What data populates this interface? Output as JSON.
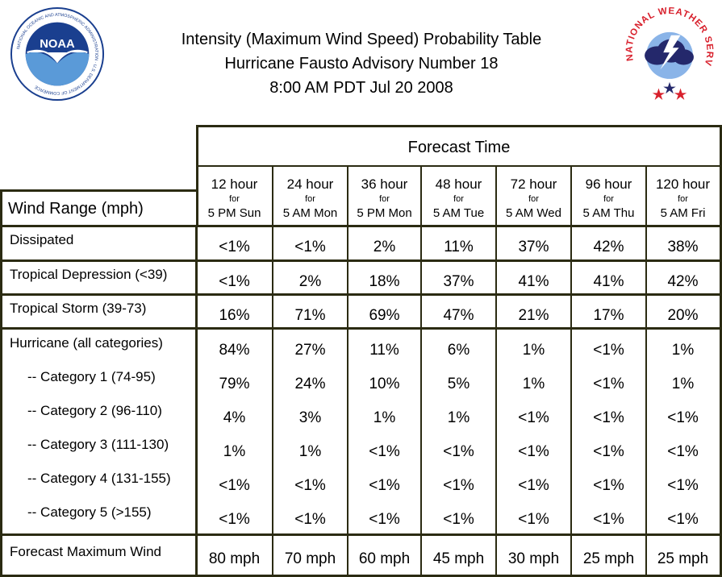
{
  "title": {
    "line1": "Intensity (Maximum Wind Speed) Probability Table",
    "line2": "Hurricane Fausto Advisory Number 18",
    "line3": "8:00 AM PDT Jul 20 2008"
  },
  "logos": {
    "noaa": {
      "text": "NOAA",
      "ring_text": "NATIONAL OCEANIC AND ATMOSPHERIC ADMINISTRATION · U.S. DEPARTMENT OF COMMERCE"
    },
    "nws": {
      "ring_text": "NATIONAL WEATHER SERVICE"
    }
  },
  "colors": {
    "border": "#2b2b12",
    "noaa_blue": "#1a3f8f",
    "nws_red": "#d8202c",
    "nws_cloud": "#24286b"
  },
  "table": {
    "forecast_time_label": "Forecast Time",
    "wind_range_label": "Wind Range (mph)",
    "columns": [
      {
        "hours": "12 hour",
        "for": "for",
        "when": "5 PM Sun"
      },
      {
        "hours": "24 hour",
        "for": "for",
        "when": "5 AM Mon"
      },
      {
        "hours": "36 hour",
        "for": "for",
        "when": "5 PM Mon"
      },
      {
        "hours": "48 hour",
        "for": "for",
        "when": "5 AM Tue"
      },
      {
        "hours": "72 hour",
        "for": "for",
        "when": "5 AM Wed"
      },
      {
        "hours": "96 hour",
        "for": "for",
        "when": "5 AM Thu"
      },
      {
        "hours": "120 hour",
        "for": "for",
        "when": "5 AM Fri"
      }
    ],
    "rows": [
      {
        "label": "Dissipated",
        "values": [
          "<1%",
          "<1%",
          "2%",
          "11%",
          "37%",
          "42%",
          "38%"
        ]
      },
      {
        "label": "Tropical Depression (<39)",
        "values": [
          "<1%",
          "2%",
          "18%",
          "37%",
          "41%",
          "41%",
          "42%"
        ]
      },
      {
        "label": "Tropical Storm (39-73)",
        "values": [
          "16%",
          "71%",
          "69%",
          "47%",
          "21%",
          "17%",
          "20%"
        ]
      },
      {
        "label": "Hurricane (all categories)",
        "values": [
          "84%",
          "27%",
          "11%",
          "6%",
          "1%",
          "<1%",
          "1%"
        ]
      },
      {
        "label": "-- Category 1 (74-95)",
        "values": [
          "79%",
          "24%",
          "10%",
          "5%",
          "1%",
          "<1%",
          "1%"
        ]
      },
      {
        "label": "-- Category 2 (96-110)",
        "values": [
          "4%",
          "3%",
          "1%",
          "1%",
          "<1%",
          "<1%",
          "<1%"
        ]
      },
      {
        "label": "-- Category 3 (111-130)",
        "values": [
          "1%",
          "1%",
          "<1%",
          "<1%",
          "<1%",
          "<1%",
          "<1%"
        ]
      },
      {
        "label": "-- Category 4 (131-155)",
        "values": [
          "<1%",
          "<1%",
          "<1%",
          "<1%",
          "<1%",
          "<1%",
          "<1%"
        ]
      },
      {
        "label": "-- Category 5 (>155)",
        "values": [
          "<1%",
          "<1%",
          "<1%",
          "<1%",
          "<1%",
          "<1%",
          "<1%"
        ]
      },
      {
        "label": "Forecast Maximum Wind",
        "values": [
          "80 mph",
          "70 mph",
          "60 mph",
          "45 mph",
          "30 mph",
          "25 mph",
          "25 mph"
        ]
      }
    ]
  }
}
